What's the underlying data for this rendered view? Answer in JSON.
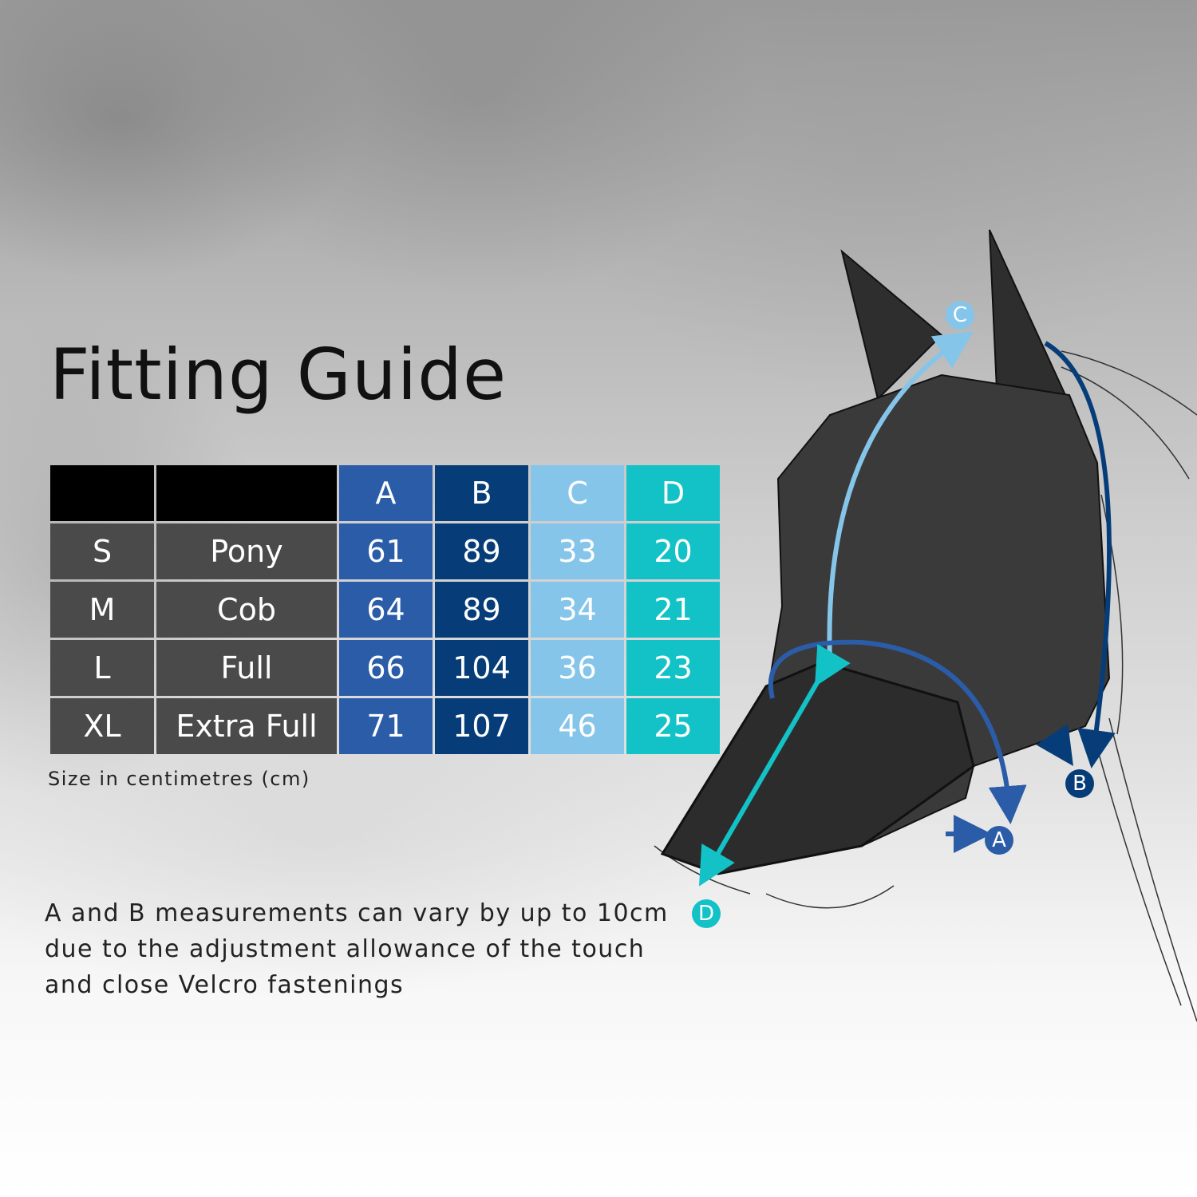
{
  "title": "Fitting Guide",
  "table": {
    "headers": [
      "",
      "",
      "A",
      "B",
      "C",
      "D"
    ],
    "rows": [
      [
        "S",
        "Pony",
        "61",
        "89",
        "33",
        "20"
      ],
      [
        "M",
        "Cob",
        "64",
        "89",
        "34",
        "21"
      ],
      [
        "L",
        "Full",
        "66",
        "104",
        "36",
        "23"
      ],
      [
        "XL",
        "Extra Full",
        "71",
        "107",
        "46",
        "25"
      ]
    ]
  },
  "unit_note": "Size in centimetres (cm)",
  "adjustment_note": "A and B measurements can vary by up to 10cm due to the adjustment allowance of the touch and close Velcro fastenings",
  "diagram": {
    "labels": [
      "A",
      "B",
      "C",
      "D"
    ]
  },
  "colors": {
    "A": "#2a5ca8",
    "B": "#063d78",
    "C": "#85c5ea",
    "D": "#12c2c6",
    "size_cells": "#4a4a4a"
  }
}
